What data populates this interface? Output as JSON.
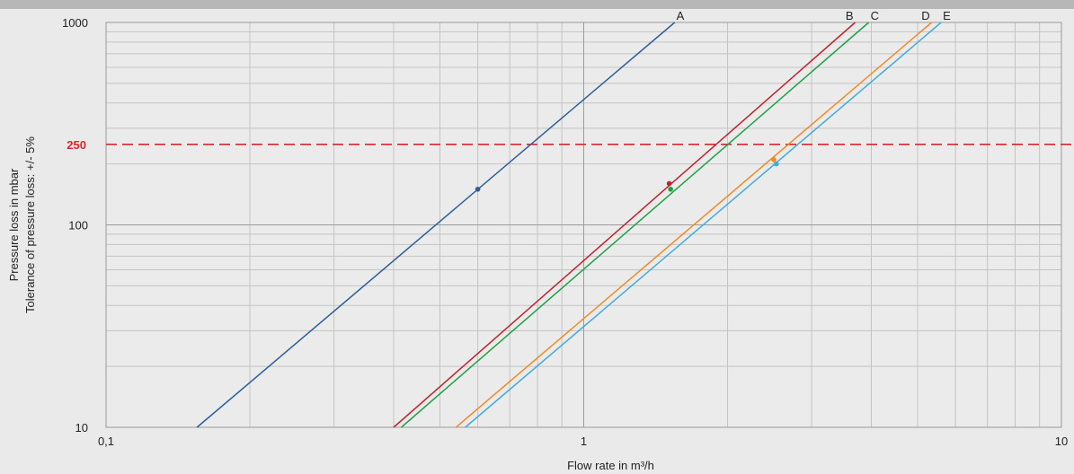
{
  "chart_data": {
    "type": "line",
    "title": "",
    "xlabel": "Flow rate in m³/h",
    "ylabel": "Pressure loss in mbar",
    "ylabel2": "Tolerance of pressure loss: +/- 5%",
    "x_scale": "log",
    "y_scale": "log",
    "xlim": [
      0.1,
      10
    ],
    "ylim": [
      10,
      1000
    ],
    "x_ticks": [
      0.1,
      1,
      10
    ],
    "x_tick_labels": [
      "0,1",
      "1",
      "10"
    ],
    "y_ticks": [
      10,
      100,
      1000
    ],
    "y_tick_labels": [
      "10",
      "100",
      "1000"
    ],
    "grid": true,
    "legend": "none",
    "reference_line": {
      "y": 250,
      "label": "250",
      "color": "#d9262b",
      "style": "dashed"
    },
    "series": [
      {
        "name": "A",
        "color": "#2e5e96",
        "x": [
          0.155,
          1.55
        ],
        "y": [
          10,
          1000
        ],
        "marker": {
          "x": 0.6,
          "y": 150
        }
      },
      {
        "name": "B",
        "color": "#c0232e",
        "x": [
          0.4,
          3.7
        ],
        "y": [
          10,
          1000
        ],
        "marker": {
          "x": 1.51,
          "y": 160
        }
      },
      {
        "name": "C",
        "color": "#1fa244",
        "x": [
          0.415,
          3.95
        ],
        "y": [
          10,
          1000
        ],
        "marker": {
          "x": 1.52,
          "y": 150
        }
      },
      {
        "name": "D",
        "color": "#ef8a25",
        "x": [
          0.54,
          5.35
        ],
        "y": [
          10,
          1000
        ],
        "marker": {
          "x": 2.5,
          "y": 210
        }
      },
      {
        "name": "E",
        "color": "#41acd9",
        "x": [
          0.565,
          5.6
        ],
        "y": [
          10,
          1000
        ],
        "marker": {
          "x": 2.53,
          "y": 200
        }
      }
    ]
  }
}
